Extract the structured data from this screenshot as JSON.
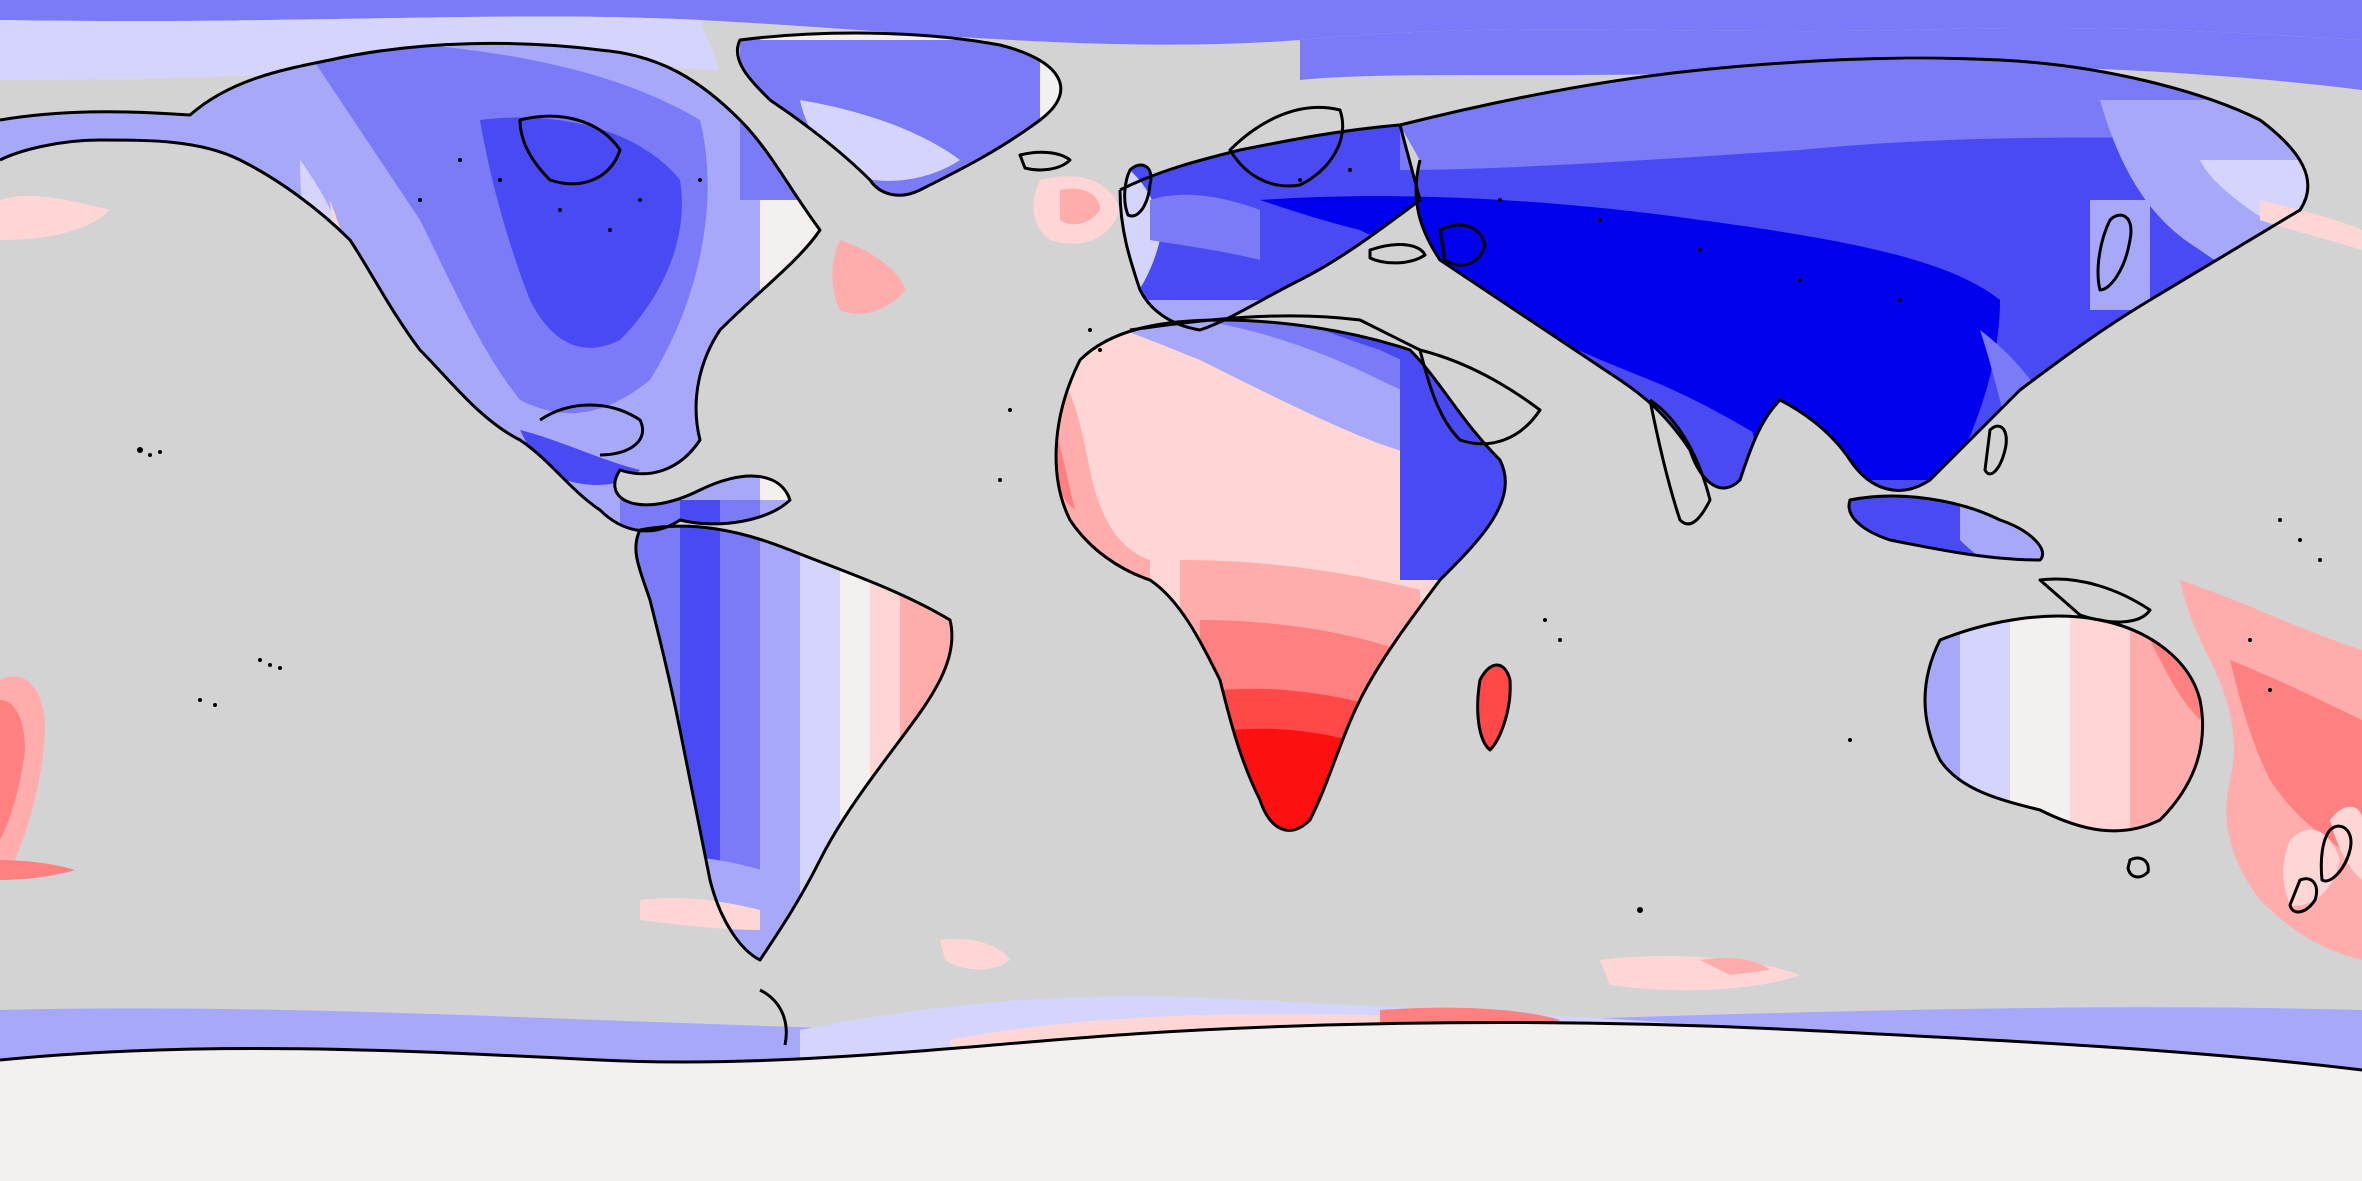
{
  "map": {
    "projection": "equirectangular",
    "longitude_range": [
      -180,
      180
    ],
    "latitude_range": [
      -90,
      90
    ],
    "ocean_color": "#d3d3d3",
    "coastline_color": "#000000",
    "colormap": "bwr",
    "palette": {
      "blue_5": "#0000ee",
      "blue_4": "#4a4af4",
      "blue_3": "#7b7bf7",
      "blue_2": "#a8a8fa",
      "blue_1": "#d4d4fc",
      "neutral": "#f4f0f0",
      "red_1": "#ffd6d6",
      "red_2": "#ffacac",
      "red_3": "#ff8080",
      "red_4": "#ff4848",
      "red_5": "#ff1010"
    },
    "legend": "none",
    "title": ""
  }
}
